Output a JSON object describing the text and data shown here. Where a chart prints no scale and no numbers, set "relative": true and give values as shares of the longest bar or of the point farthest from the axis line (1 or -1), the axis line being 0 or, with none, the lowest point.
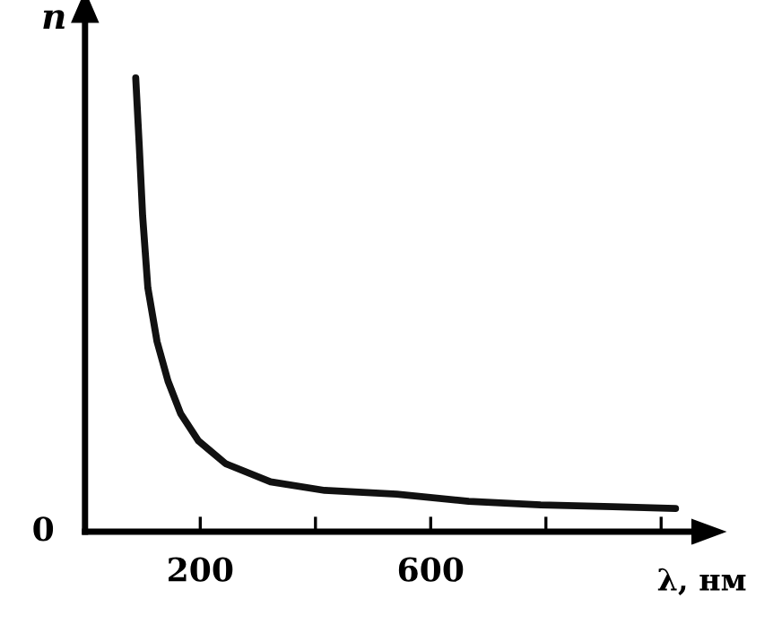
{
  "chart_data": {
    "type": "line",
    "relative": true,
    "xlabel": "λ, нм",
    "ylabel": "n",
    "annotations": [
      "0"
    ],
    "xlim": [
      0,
      1060
    ],
    "xticks": [
      200,
      {
        "value": 400,
        "label": null
      },
      600,
      {
        "value": 800,
        "label": null
      },
      {
        "value": 1000,
        "label": null
      }
    ],
    "grid": false,
    "marker": "none",
    "line_style": "solid",
    "series": [
      {
        "color": "#111111",
        "x": [
          88,
          94,
          100,
          109,
          125,
          144,
          166,
          197,
          244,
          322,
          416,
          541,
          666,
          791,
          916,
          1025
        ],
        "values": [
          1,
          0.854,
          0.696,
          0.538,
          0.419,
          0.332,
          0.26,
          0.2,
          0.15,
          0.11,
          0.091,
          0.083,
          0.067,
          0.059,
          0.055,
          0.051
        ]
      }
    ]
  }
}
